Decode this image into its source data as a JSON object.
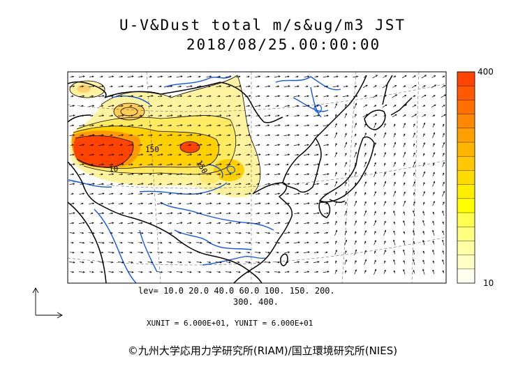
{
  "title": "U-V&Dust total m/s&ug/m3 JST",
  "datetime": "2018/08/25.00:00:00",
  "levels_line1": "lev= 10.0 20.0 40.0 60.0 100. 150. 200.",
  "levels_line2": "300. 400.",
  "units": "XUNIT = 6.000E+01, YUNIT = 6.000E+01",
  "copyright": "©九州大学応用力学研究所(RIAM)/国立環境研究所(NIES)",
  "colorbar": {
    "max_label": "400",
    "min_label": "10",
    "colors": [
      "#ff4400",
      "#ff5a00",
      "#ff7000",
      "#ff8800",
      "#ffa000",
      "#ffb400",
      "#ffc800",
      "#ffdc00",
      "#ffee00",
      "#ffff00",
      "#ffff50",
      "#ffff80",
      "#ffffa6",
      "#ffffc6",
      "#fffff0"
    ]
  },
  "contour_labels": [
    "150",
    "150",
    "10"
  ],
  "colors": {
    "coast": "#000000",
    "rivers": "#1155ee",
    "dust_low": "#fff3a0",
    "dust_mid": "#ffe000",
    "dust_high": "#ff4400"
  }
}
